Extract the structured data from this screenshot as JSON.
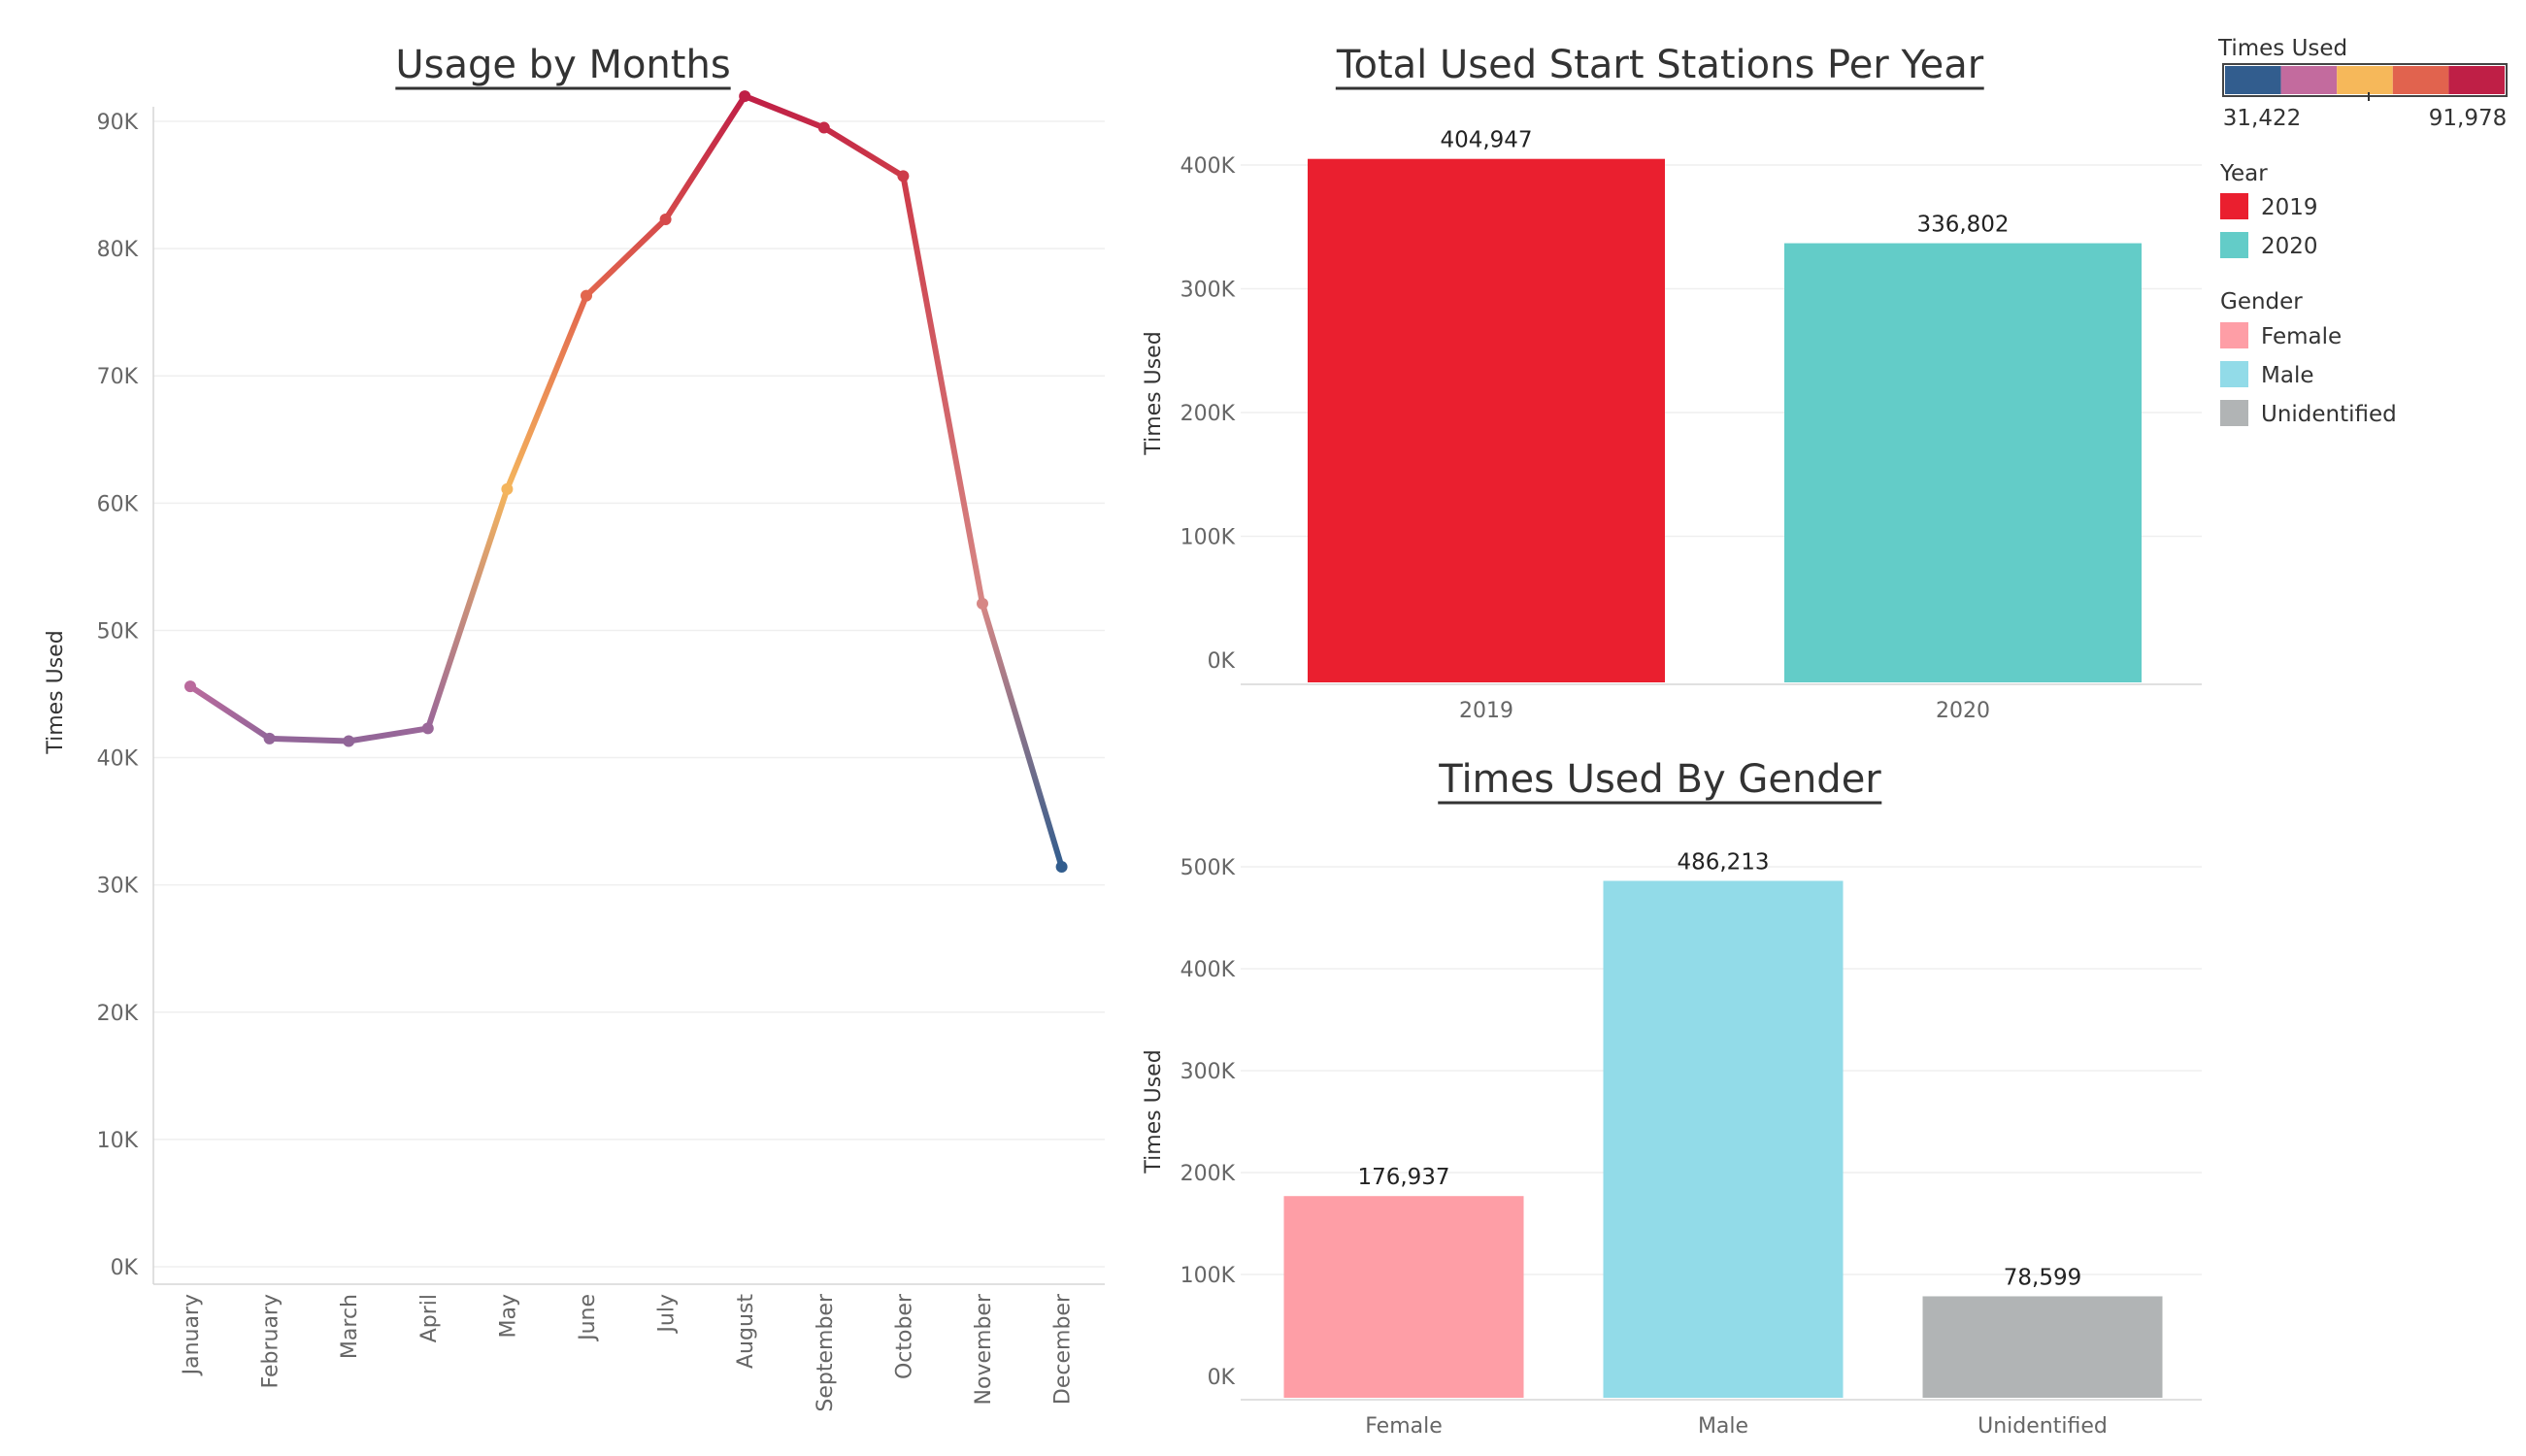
{
  "chart_data": [
    {
      "type": "line",
      "title": "Usage by Months",
      "xlabel": "",
      "ylabel": "Times Used",
      "categories": [
        "January",
        "February",
        "March",
        "April",
        "May",
        "June",
        "July",
        "August",
        "September",
        "October",
        "November",
        "December"
      ],
      "values": [
        45600,
        41500,
        41300,
        42300,
        61100,
        76300,
        82300,
        91978,
        89500,
        85700,
        52100,
        31422
      ],
      "ylim": [
        0,
        95000
      ],
      "yticks": [
        "0K",
        "10K",
        "20K",
        "30K",
        "40K",
        "50K",
        "60K",
        "70K",
        "80K",
        "90K"
      ],
      "color_encoding": "Times Used",
      "grid": true
    },
    {
      "type": "bar",
      "title": "Total Used Start Stations Per Year",
      "xlabel": "",
      "ylabel": "Times Used",
      "categories": [
        "2019",
        "2020"
      ],
      "values": [
        404947,
        336802
      ],
      "data_labels": [
        "404,947",
        "336,802"
      ],
      "colors": [
        "#ea1f2f",
        "#63ccc8"
      ],
      "ylim": [
        0,
        440000
      ],
      "yticks": [
        "0K",
        "100K",
        "200K",
        "300K",
        "400K"
      ],
      "grid": true
    },
    {
      "type": "bar",
      "title": "Times Used By Gender",
      "xlabel": "",
      "ylabel": "Times Used",
      "categories": [
        "Female",
        "Male",
        "Unidentified"
      ],
      "values": [
        176937,
        486213,
        78599
      ],
      "data_labels": [
        "176,937",
        "486,213",
        "78,599"
      ],
      "colors": [
        "#fe9ea6",
        "#92dbe8",
        "#b1b4b5"
      ],
      "ylim": [
        0,
        540000
      ],
      "yticks": [
        "0K",
        "100K",
        "200K",
        "300K",
        "400K",
        "500K"
      ],
      "grid": true
    }
  ],
  "legend": {
    "times_used": {
      "title": "Times Used",
      "min_label": "31,422",
      "max_label": "91,978",
      "min": 31422,
      "max": 91978,
      "palette": [
        "#325d8e",
        "#c36b9e",
        "#f6b85a",
        "#e1634e",
        "#bf1f46"
      ]
    },
    "year": {
      "title": "Year",
      "items": [
        {
          "label": "2019",
          "color": "#ea1f2f"
        },
        {
          "label": "2020",
          "color": "#63ccc8"
        }
      ]
    },
    "gender": {
      "title": "Gender",
      "items": [
        {
          "label": "Female",
          "color": "#fe9ea6"
        },
        {
          "label": "Male",
          "color": "#92dbe8"
        },
        {
          "label": "Unidentified",
          "color": "#b1b4b5"
        }
      ]
    }
  }
}
